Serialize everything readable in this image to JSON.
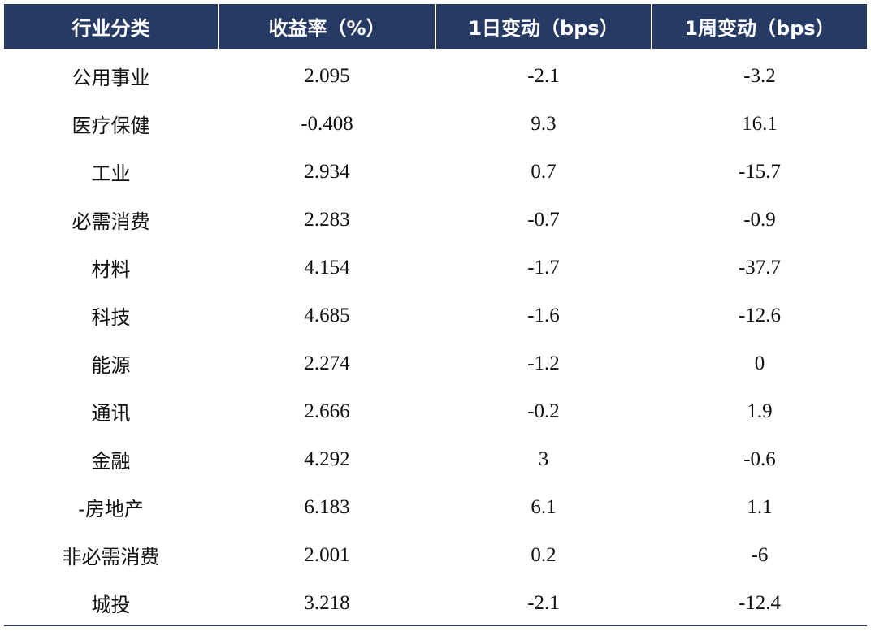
{
  "table": {
    "header": [
      "行业分类",
      "收益率（%）",
      "1日变动（bps）",
      "1周变动（bps）"
    ],
    "rows": [
      [
        "公用事业",
        "2.095",
        "-2.1",
        "-3.2"
      ],
      [
        "医疗保健",
        "-0.408",
        "9.3",
        "16.1"
      ],
      [
        "工业",
        "2.934",
        "0.7",
        "-15.7"
      ],
      [
        "必需消费",
        "2.283",
        "-0.7",
        "-0.9"
      ],
      [
        "材料",
        "4.154",
        "-1.7",
        "-37.7"
      ],
      [
        "科技",
        "4.685",
        "-1.6",
        "-12.6"
      ],
      [
        "能源",
        "2.274",
        "-1.2",
        "0"
      ],
      [
        "通讯",
        "2.666",
        "-0.2",
        "1.9"
      ],
      [
        "金融",
        "4.292",
        "3",
        "-0.6"
      ],
      [
        "-房地产",
        "6.183",
        "6.1",
        "1.1"
      ],
      [
        "非必需消费",
        "2.001",
        "0.2",
        "-6"
      ],
      [
        "城投",
        "3.218",
        "-2.1",
        "-12.4"
      ]
    ]
  }
}
